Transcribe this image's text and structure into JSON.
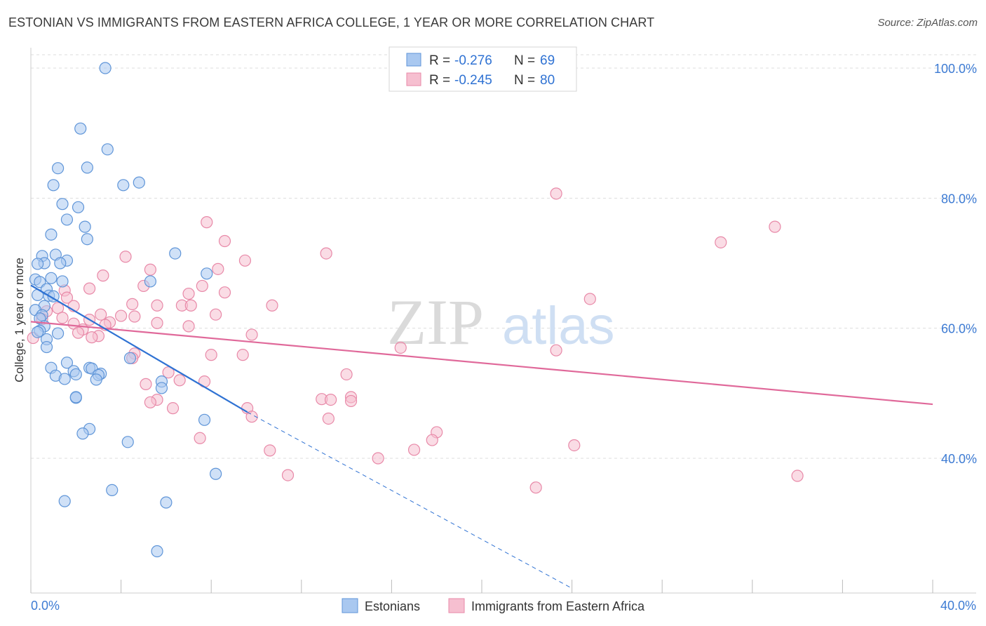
{
  "title": "ESTONIAN VS IMMIGRANTS FROM EASTERN AFRICA COLLEGE, 1 YEAR OR MORE CORRELATION CHART",
  "source": "Source: ZipAtlas.com",
  "watermark": {
    "zip": "ZIP",
    "atlas": "atlas"
  },
  "colors": {
    "blue_fill": "#a9c8f0",
    "blue_stroke": "#5f95d8",
    "blue_line": "#2f72d3",
    "pink_fill": "#f6bfd0",
    "pink_stroke": "#e889a8",
    "pink_line": "#e0699a",
    "tick_label": "#3d7bd3",
    "grid": "#dddddd"
  },
  "legend_top": {
    "rows": [
      {
        "r_label": "R =",
        "r_value": "-0.276",
        "n_label": "N =",
        "n_value": "69",
        "color": "blue"
      },
      {
        "r_label": "R =",
        "r_value": "-0.245",
        "n_label": "N =",
        "n_value": "80",
        "color": "pink"
      }
    ]
  },
  "legend_bottom": {
    "items": [
      "Estonians",
      "Immigrants from Eastern Africa"
    ]
  },
  "chart_data": {
    "type": "scatter",
    "title": "ESTONIAN VS IMMIGRANTS FROM EASTERN AFRICA COLLEGE, 1 YEAR OR MORE CORRELATION CHART",
    "xlabel": "",
    "ylabel": "College, 1 year or more",
    "xlim": [
      0,
      40
    ],
    "ylim": [
      20,
      102
    ],
    "x_tick_labels": [
      "0.0%",
      "40.0%"
    ],
    "y_ticks": [
      40,
      60,
      80,
      100
    ],
    "y_tick_labels": [
      "40.0%",
      "60.0%",
      "80.0%",
      "100.0%"
    ],
    "grid": true,
    "legend_placement": "top-center",
    "series": [
      {
        "name": "Estonians",
        "color": "blue",
        "trend": {
          "x": [
            0.0,
            9.6
          ],
          "y": [
            66.6,
            47.1
          ],
          "dashed_to": {
            "x": 24.0,
            "y": 20.0
          }
        },
        "points": [
          [
            3.3,
            100.0
          ],
          [
            2.2,
            90.7
          ],
          [
            3.4,
            87.5
          ],
          [
            1.2,
            84.6
          ],
          [
            2.5,
            84.7
          ],
          [
            1.0,
            82.0
          ],
          [
            4.1,
            82.0
          ],
          [
            4.8,
            82.4
          ],
          [
            1.4,
            79.1
          ],
          [
            2.1,
            78.6
          ],
          [
            1.6,
            76.7
          ],
          [
            2.4,
            75.6
          ],
          [
            0.9,
            74.4
          ],
          [
            2.5,
            73.7
          ],
          [
            0.5,
            71.1
          ],
          [
            1.1,
            71.3
          ],
          [
            6.4,
            71.5
          ],
          [
            0.6,
            70.0
          ],
          [
            0.3,
            69.9
          ],
          [
            1.6,
            70.4
          ],
          [
            1.3,
            70.0
          ],
          [
            7.8,
            68.4
          ],
          [
            0.2,
            67.5
          ],
          [
            0.9,
            67.7
          ],
          [
            5.3,
            67.2
          ],
          [
            0.4,
            67.1
          ],
          [
            1.4,
            67.2
          ],
          [
            0.7,
            66.0
          ],
          [
            0.3,
            65.1
          ],
          [
            0.8,
            65.0
          ],
          [
            1.0,
            64.9
          ],
          [
            0.6,
            63.4
          ],
          [
            0.2,
            62.8
          ],
          [
            0.5,
            62.0
          ],
          [
            0.4,
            61.5
          ],
          [
            0.6,
            60.3
          ],
          [
            0.4,
            59.6
          ],
          [
            1.2,
            59.2
          ],
          [
            0.3,
            59.4
          ],
          [
            0.7,
            58.3
          ],
          [
            0.7,
            57.1
          ],
          [
            4.4,
            55.4
          ],
          [
            1.6,
            54.7
          ],
          [
            0.9,
            53.9
          ],
          [
            2.6,
            53.9
          ],
          [
            2.7,
            53.8
          ],
          [
            1.9,
            53.4
          ],
          [
            3.1,
            53.0
          ],
          [
            3.0,
            52.8
          ],
          [
            1.1,
            52.7
          ],
          [
            2.0,
            52.9
          ],
          [
            1.5,
            52.2
          ],
          [
            5.8,
            51.8
          ],
          [
            2.9,
            52.1
          ],
          [
            5.8,
            50.8
          ],
          [
            2.0,
            49.3
          ],
          [
            2.0,
            49.4
          ],
          [
            7.7,
            45.9
          ],
          [
            2.6,
            44.5
          ],
          [
            2.3,
            43.8
          ],
          [
            4.3,
            42.5
          ],
          [
            8.2,
            37.6
          ],
          [
            3.6,
            35.1
          ],
          [
            1.5,
            33.4
          ],
          [
            6.0,
            33.2
          ],
          [
            5.6,
            25.7
          ]
        ]
      },
      {
        "name": "Immigrants from Eastern Africa",
        "color": "pink",
        "trend": {
          "x": [
            0.0,
            40.0
          ],
          "y": [
            61.0,
            48.3
          ]
        },
        "points": [
          [
            23.3,
            80.7
          ],
          [
            7.8,
            76.3
          ],
          [
            33.0,
            75.6
          ],
          [
            30.6,
            73.2
          ],
          [
            8.6,
            73.4
          ],
          [
            13.1,
            71.5
          ],
          [
            4.2,
            71.0
          ],
          [
            9.5,
            70.4
          ],
          [
            5.3,
            69.0
          ],
          [
            8.3,
            69.1
          ],
          [
            3.2,
            68.1
          ],
          [
            7.6,
            66.5
          ],
          [
            5.0,
            66.5
          ],
          [
            1.5,
            65.8
          ],
          [
            2.6,
            66.1
          ],
          [
            8.6,
            65.5
          ],
          [
            7.0,
            65.3
          ],
          [
            1.6,
            64.7
          ],
          [
            5.6,
            63.5
          ],
          [
            4.5,
            63.7
          ],
          [
            1.9,
            63.4
          ],
          [
            6.7,
            63.5
          ],
          [
            7.1,
            63.5
          ],
          [
            10.7,
            63.5
          ],
          [
            24.8,
            64.5
          ],
          [
            1.2,
            63.1
          ],
          [
            0.7,
            62.6
          ],
          [
            3.1,
            62.1
          ],
          [
            8.2,
            62.1
          ],
          [
            4.0,
            61.9
          ],
          [
            4.6,
            61.8
          ],
          [
            1.4,
            61.6
          ],
          [
            0.5,
            61.4
          ],
          [
            2.6,
            61.3
          ],
          [
            1.9,
            60.7
          ],
          [
            3.5,
            60.9
          ],
          [
            5.6,
            60.8
          ],
          [
            7.0,
            60.3
          ],
          [
            3.3,
            60.5
          ],
          [
            2.3,
            59.8
          ],
          [
            2.1,
            59.3
          ],
          [
            3.0,
            58.8
          ],
          [
            9.8,
            59.0
          ],
          [
            2.7,
            58.6
          ],
          [
            0.1,
            58.5
          ],
          [
            16.4,
            57.0
          ],
          [
            23.3,
            56.6
          ],
          [
            4.6,
            56.1
          ],
          [
            8.0,
            55.9
          ],
          [
            9.4,
            55.9
          ],
          [
            4.5,
            55.4
          ],
          [
            6.1,
            53.2
          ],
          [
            14.0,
            52.9
          ],
          [
            6.6,
            52.0
          ],
          [
            5.1,
            51.4
          ],
          [
            7.7,
            51.8
          ],
          [
            14.2,
            49.4
          ],
          [
            12.9,
            49.1
          ],
          [
            13.3,
            49.0
          ],
          [
            5.6,
            49.0
          ],
          [
            14.2,
            48.8
          ],
          [
            5.3,
            48.6
          ],
          [
            6.3,
            47.7
          ],
          [
            9.6,
            47.7
          ],
          [
            9.8,
            46.4
          ],
          [
            13.2,
            46.1
          ],
          [
            18.0,
            44.0
          ],
          [
            17.8,
            42.8
          ],
          [
            7.5,
            43.1
          ],
          [
            24.1,
            42.0
          ],
          [
            10.6,
            41.2
          ],
          [
            17.0,
            41.3
          ],
          [
            15.4,
            40.0
          ],
          [
            11.4,
            37.4
          ],
          [
            34.0,
            37.3
          ],
          [
            22.4,
            35.5
          ]
        ]
      }
    ]
  }
}
